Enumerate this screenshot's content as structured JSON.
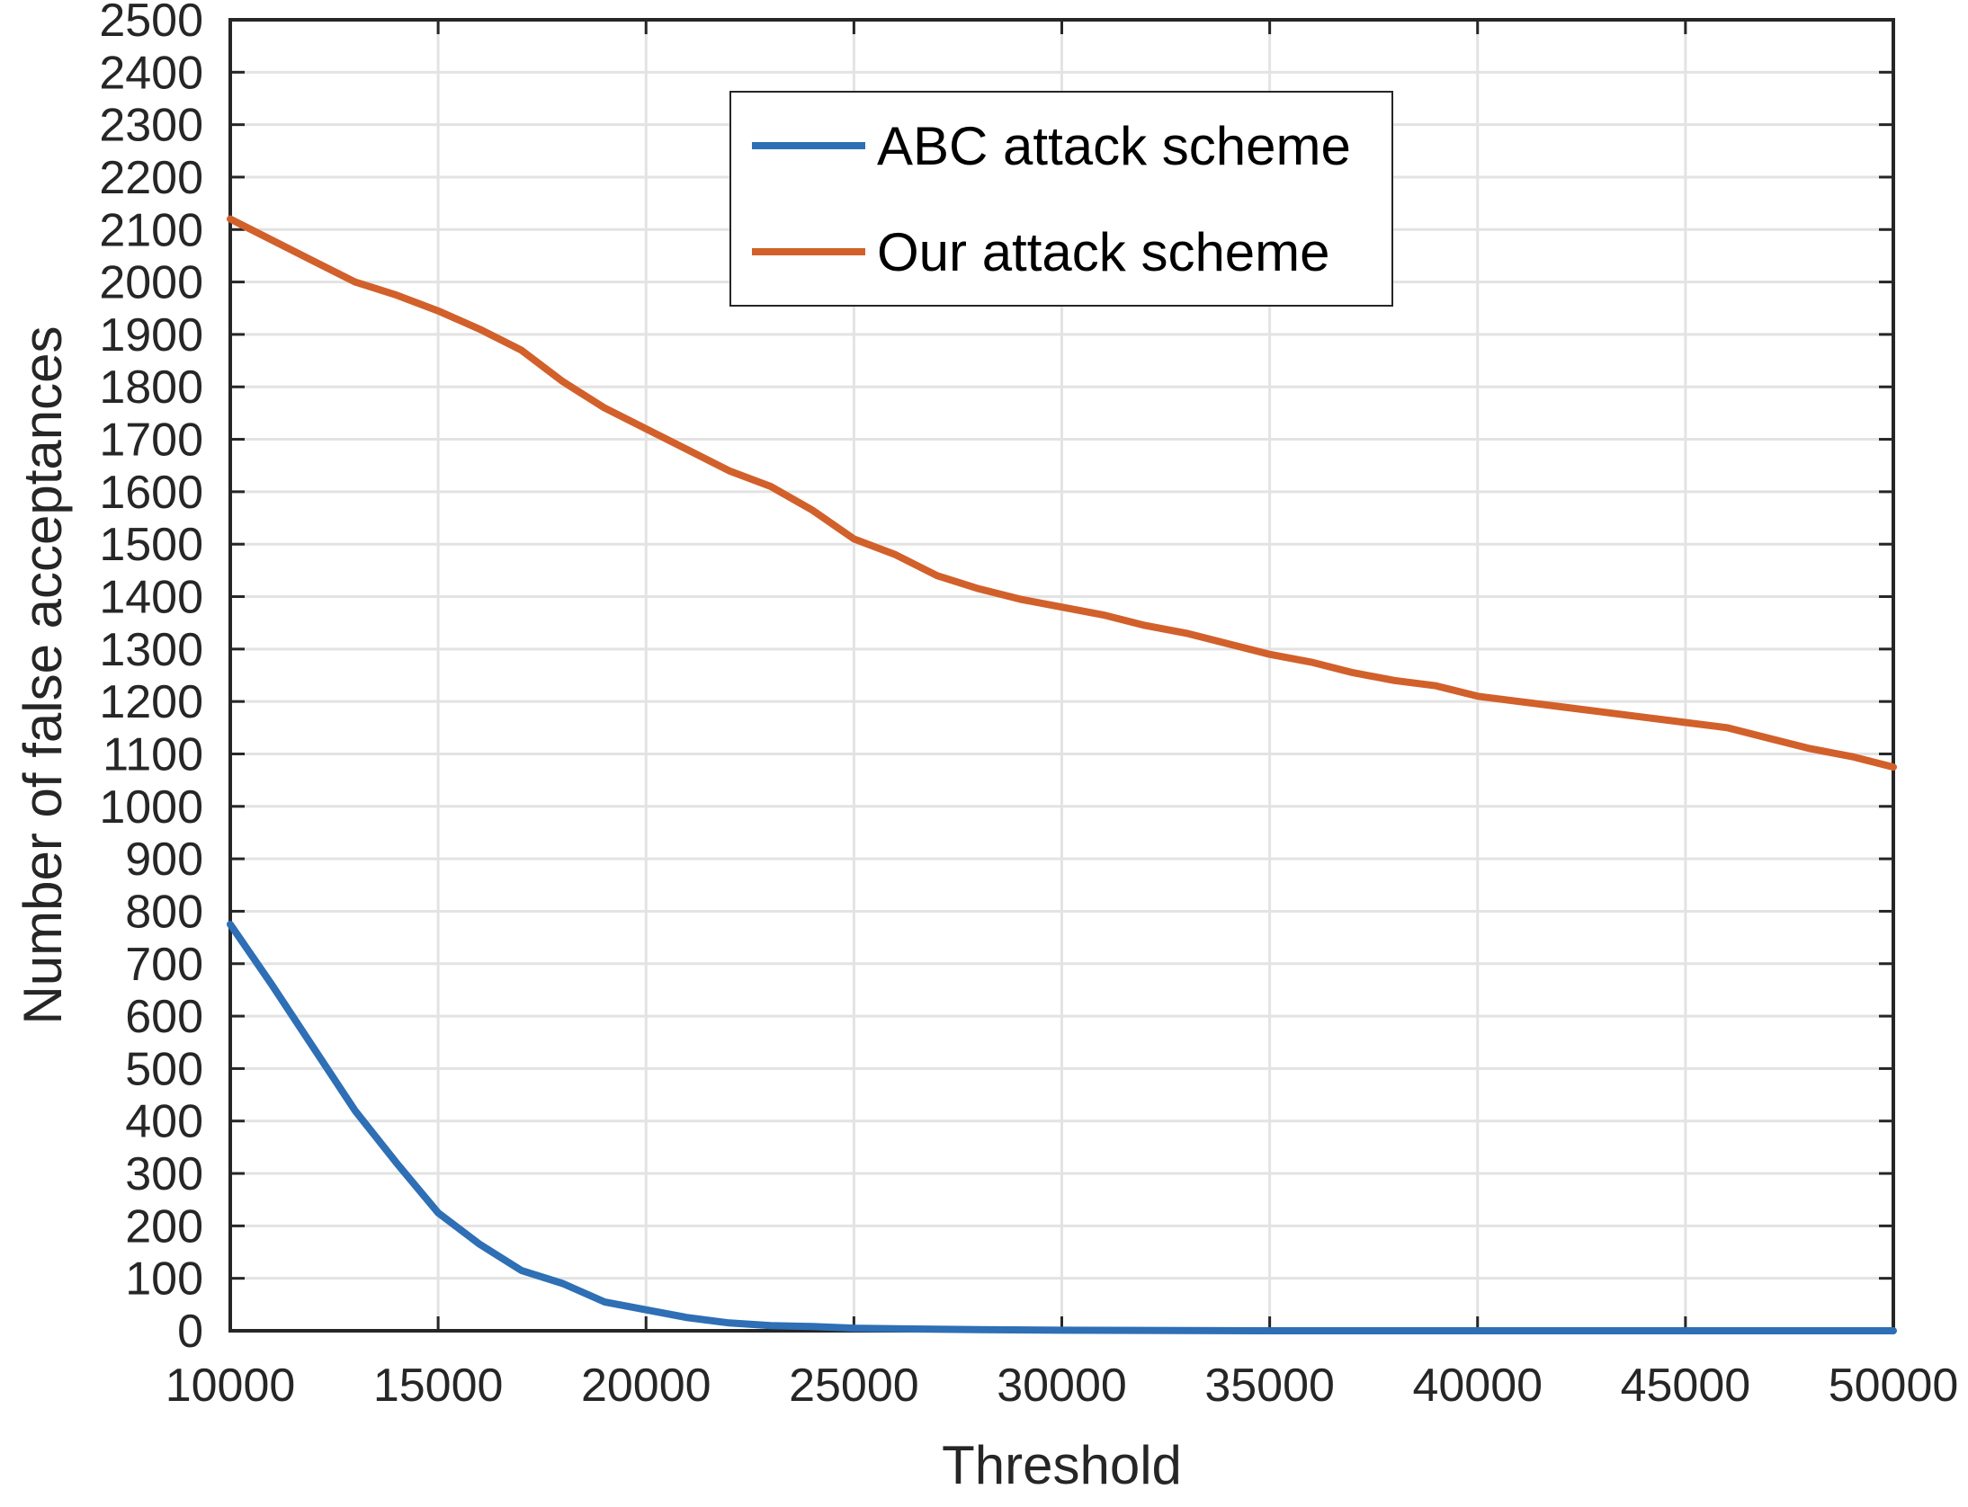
{
  "chart_data": {
    "type": "line",
    "title": "",
    "xlabel": "Threshold",
    "ylabel": "Number of false acceptances",
    "xlim": [
      10000,
      50000
    ],
    "ylim": [
      0,
      2500
    ],
    "x_ticks": [
      "10000",
      "15000",
      "20000",
      "25000",
      "30000",
      "35000",
      "40000",
      "45000",
      "50000"
    ],
    "y_ticks": [
      "0",
      "100",
      "200",
      "300",
      "400",
      "500",
      "600",
      "700",
      "800",
      "900",
      "1000",
      "1100",
      "1200",
      "1300",
      "1400",
      "1500",
      "1600",
      "1700",
      "1800",
      "1900",
      "2000",
      "2100",
      "2200",
      "2300",
      "2400",
      "2500"
    ],
    "grid": true,
    "legend_position": "top-center",
    "series": [
      {
        "name": "ABC attack scheme",
        "color": "#2e6fb5",
        "x": [
          10000,
          11000,
          12000,
          13000,
          14000,
          15000,
          16000,
          17000,
          18000,
          19000,
          20000,
          21000,
          22000,
          23000,
          24000,
          25000,
          26000,
          28000,
          30000,
          35000,
          40000,
          45000,
          50000
        ],
        "y": [
          775,
          660,
          540,
          420,
          320,
          225,
          165,
          115,
          90,
          55,
          40,
          25,
          15,
          10,
          8,
          5,
          4,
          2,
          1,
          0,
          0,
          0,
          0
        ]
      },
      {
        "name": "Our attack scheme",
        "color": "#d2602b",
        "x": [
          10000,
          11000,
          12000,
          13000,
          14000,
          15000,
          16000,
          17000,
          18000,
          19000,
          20000,
          21000,
          22000,
          23000,
          24000,
          25000,
          26000,
          27000,
          28000,
          29000,
          30000,
          31000,
          32000,
          33000,
          34000,
          35000,
          36000,
          37000,
          38000,
          39000,
          40000,
          41000,
          42000,
          43000,
          44000,
          45000,
          46000,
          47000,
          48000,
          49000,
          50000
        ],
        "y": [
          2120,
          2080,
          2040,
          2000,
          1975,
          1945,
          1910,
          1870,
          1810,
          1760,
          1720,
          1680,
          1640,
          1610,
          1565,
          1510,
          1480,
          1440,
          1415,
          1395,
          1380,
          1365,
          1345,
          1330,
          1310,
          1290,
          1275,
          1255,
          1240,
          1230,
          1210,
          1200,
          1190,
          1180,
          1170,
          1160,
          1150,
          1130,
          1110,
          1095,
          1075
        ]
      }
    ]
  }
}
